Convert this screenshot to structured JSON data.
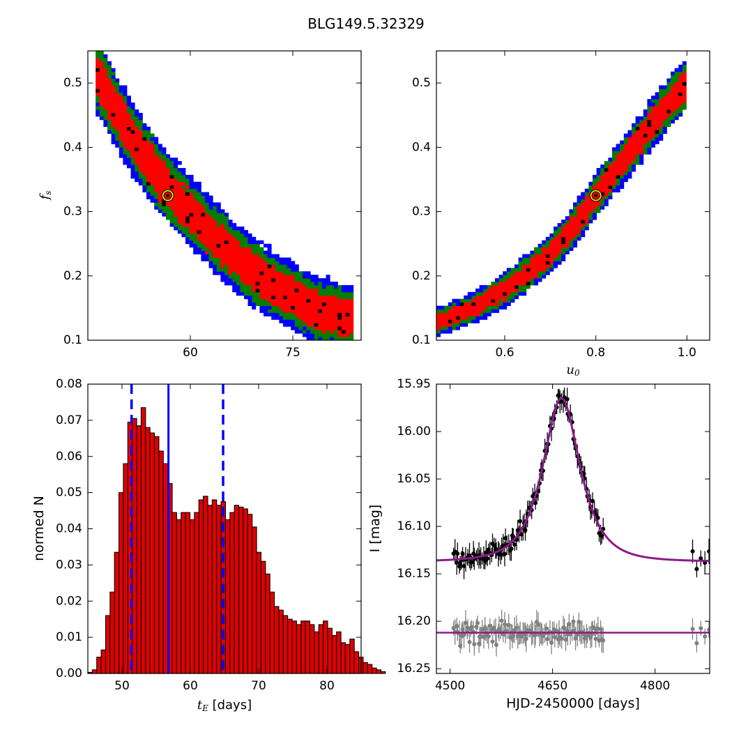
{
  "title": "BLG149.5.32329",
  "chart_data": [
    {
      "type": "heatmap",
      "panel": "top-left",
      "xlabel": "",
      "ylabel": "f_s",
      "xlim": [
        45,
        85
      ],
      "ylim": [
        0.1,
        0.55
      ],
      "xticks": [
        60,
        75
      ],
      "yticks": [
        0.1,
        0.2,
        0.3,
        0.4,
        0.5
      ],
      "levels": [
        {
          "name": "1 sigma",
          "color": "#ff0000"
        },
        {
          "name": "2 sigma",
          "color": "#007f00"
        },
        {
          "name": "3 sigma",
          "color": "#0000ff"
        }
      ],
      "ridge": [
        [
          46.5,
          0.51
        ],
        [
          50,
          0.44
        ],
        [
          53,
          0.39
        ],
        [
          56,
          0.345
        ],
        [
          60,
          0.3
        ],
        [
          63,
          0.265
        ],
        [
          66,
          0.235
        ],
        [
          70,
          0.2
        ],
        [
          74,
          0.175
        ],
        [
          78,
          0.15
        ],
        [
          83,
          0.135
        ]
      ],
      "best_fit": {
        "x": 56.7,
        "y": 0.325
      }
    },
    {
      "type": "heatmap",
      "panel": "top-right",
      "xlabel": "u_0",
      "ylabel": "",
      "xlim": [
        0.45,
        1.05
      ],
      "ylim": [
        0.1,
        0.55
      ],
      "xticks": [
        0.6,
        0.8,
        1.0
      ],
      "yticks": [
        0.1,
        0.2,
        0.3,
        0.4,
        0.5
      ],
      "ridge": [
        [
          0.45,
          0.13
        ],
        [
          0.5,
          0.14
        ],
        [
          0.55,
          0.158
        ],
        [
          0.6,
          0.178
        ],
        [
          0.65,
          0.205
        ],
        [
          0.7,
          0.235
        ],
        [
          0.75,
          0.275
        ],
        [
          0.8,
          0.325
        ],
        [
          0.85,
          0.37
        ],
        [
          0.9,
          0.415
        ],
        [
          0.95,
          0.46
        ],
        [
          1.0,
          0.5
        ]
      ],
      "best_fit": {
        "x": 0.8,
        "y": 0.325
      }
    },
    {
      "type": "bar",
      "panel": "bottom-left",
      "xlabel": "t_E [days]",
      "ylabel": "normed N",
      "xlim": [
        45,
        85
      ],
      "ylim": [
        0,
        0.08
      ],
      "xticks": [
        50,
        60,
        70,
        80
      ],
      "yticks": [
        0.0,
        0.01,
        0.02,
        0.03,
        0.04,
        0.05,
        0.06,
        0.07,
        0.08
      ],
      "bin_start": 45.0,
      "bin_width": 0.65,
      "values": [
        0.0003,
        0.001,
        0.0045,
        0.0065,
        0.016,
        0.0225,
        0.0335,
        0.05,
        0.058,
        0.0695,
        0.0705,
        0.0685,
        0.0735,
        0.068,
        0.0665,
        0.0655,
        0.0615,
        0.058,
        0.0525,
        0.0445,
        0.0425,
        0.0445,
        0.0445,
        0.0425,
        0.0445,
        0.048,
        0.049,
        0.0465,
        0.048,
        0.0465,
        0.0475,
        0.0425,
        0.0445,
        0.0465,
        0.046,
        0.0455,
        0.044,
        0.0405,
        0.0335,
        0.031,
        0.0275,
        0.0225,
        0.0185,
        0.0175,
        0.016,
        0.015,
        0.0145,
        0.0135,
        0.0145,
        0.0145,
        0.0135,
        0.0115,
        0.0135,
        0.0145,
        0.0125,
        0.0105,
        0.0115,
        0.0085,
        0.008,
        0.0095,
        0.006,
        0.0045,
        0.003,
        0.0025,
        0.0015,
        0.001,
        0.0005
      ],
      "median": 56.8,
      "lower": 51.4,
      "upper": 64.8
    },
    {
      "type": "scatter",
      "panel": "bottom-right",
      "xlabel": "HJD-2450000 [days]",
      "ylabel": "I [mag]",
      "xlim": [
        4480,
        4880
      ],
      "ylim": [
        16.255,
        15.95
      ],
      "xticks": [
        4500,
        4650,
        4800
      ],
      "yticks": [
        15.95,
        16.0,
        16.05,
        16.1,
        16.15,
        16.2,
        16.25
      ],
      "model": {
        "t0": 4663,
        "peak_mag": 15.965,
        "base_mag": 16.137,
        "tE": 57,
        "u0": 0.8,
        "fs": 0.325
      },
      "residual_baseline": 16.212,
      "series": [
        {
          "color": "#000000",
          "kind": "data"
        },
        {
          "color": "#808080",
          "kind": "residuals"
        },
        {
          "color": "#8b1a8b",
          "kind": "model"
        }
      ]
    }
  ]
}
